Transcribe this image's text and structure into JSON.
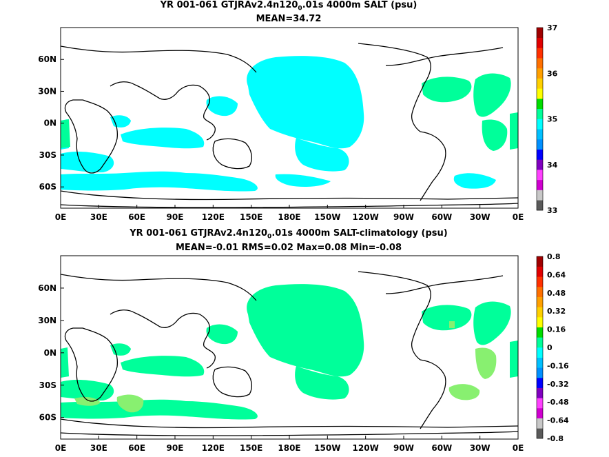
{
  "chart_data": [
    {
      "type": "heatmap",
      "title": "YR 001-061 GTJRAv2.4n120",
      "title_sub": "0",
      "title_rest": ".01s 4000m SALT (psu)",
      "subtitle": "MEAN=34.72",
      "x_ticks": [
        "0E",
        "30E",
        "60E",
        "90E",
        "120E",
        "150E",
        "180E",
        "150W",
        "120W",
        "90W",
        "60W",
        "30W",
        "0E"
      ],
      "y_ticks": [
        "60N",
        "30N",
        "0N",
        "30S",
        "60S"
      ],
      "xlim": [
        0,
        360
      ],
      "ylim": [
        -80,
        90
      ],
      "colorbar": {
        "ticks": [
          "37",
          "36",
          "35",
          "34",
          "33"
        ],
        "range": [
          33,
          37
        ],
        "colors": [
          "#5a5a5a",
          "#c8c8c8",
          "#d000d0",
          "#ff40ff",
          "#8000c0",
          "#0000ff",
          "#0090ff",
          "#00c0ff",
          "#00ffff",
          "#00ff9a",
          "#00dd00",
          "#ffff00",
          "#ffd000",
          "#ffa000",
          "#ff7000",
          "#ff3000",
          "#e00000",
          "#a00000"
        ]
      },
      "field_colors": {
        "cyan": "#00ffff",
        "green": "#00ff9a",
        "land": "#ffffff",
        "coast": "#000000"
      }
    },
    {
      "type": "heatmap",
      "title": "YR 001-061 GTJRAv2.4n120",
      "title_sub": "0",
      "title_rest": ".01s 4000m SALT-climatology (psu)",
      "subtitle": "MEAN=-0.01   RMS=0.02   Max=0.08   Min=-0.08",
      "x_ticks": [
        "0E",
        "30E",
        "60E",
        "90E",
        "120E",
        "150E",
        "180E",
        "150W",
        "120W",
        "90W",
        "60W",
        "30W",
        "0E"
      ],
      "y_ticks": [
        "60N",
        "30N",
        "0N",
        "30S",
        "60S"
      ],
      "xlim": [
        0,
        360
      ],
      "ylim": [
        -80,
        90
      ],
      "colorbar": {
        "ticks": [
          "0.8",
          "0.64",
          "0.48",
          "0.32",
          "0.16",
          "0",
          "-0.16",
          "-0.32",
          "-0.48",
          "-0.64",
          "-0.8"
        ],
        "range": [
          -0.8,
          0.8
        ],
        "colors": [
          "#5a5a5a",
          "#c8c8c8",
          "#d000d0",
          "#ff40ff",
          "#8000c0",
          "#0000ff",
          "#0090ff",
          "#00c0ff",
          "#00ffff",
          "#00ff9a",
          "#00dd00",
          "#ffff00",
          "#ffd000",
          "#ffa000",
          "#ff7000",
          "#ff3000",
          "#e00000",
          "#a00000"
        ]
      },
      "field_colors": {
        "green": "#00ff9a",
        "lightgreen": "#88f070",
        "land": "#ffffff",
        "coast": "#000000"
      }
    }
  ]
}
